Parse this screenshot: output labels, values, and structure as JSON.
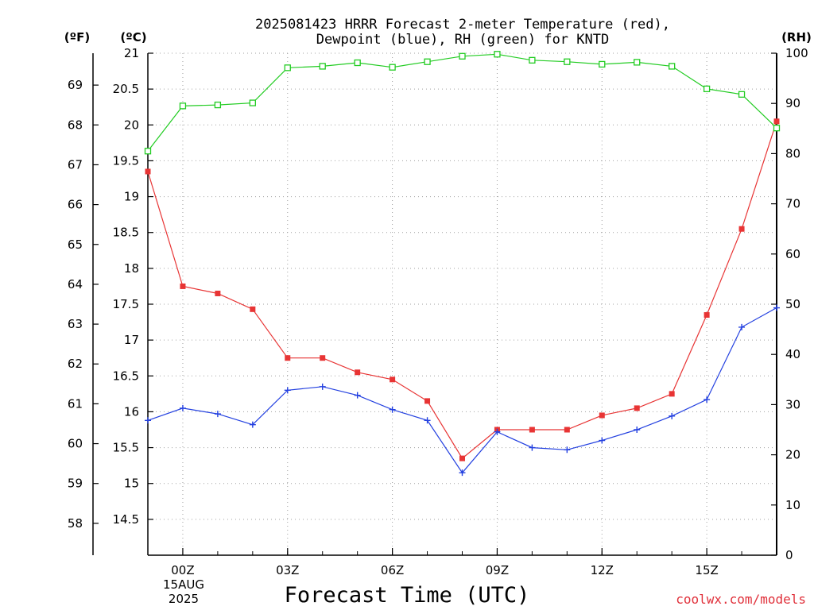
{
  "chart_data": {
    "type": "line",
    "title_lines": [
      "2025081423 HRRR Forecast 2-meter Temperature (red),",
      "Dewpoint (blue), RH (green) for KNTD"
    ],
    "xlabel": "Forecast Time (UTC)",
    "date_label": [
      "15AUG",
      "2025"
    ],
    "credit": "coolwx.com/models",
    "x_range": [
      -1,
      17
    ],
    "x_ticks": [
      {
        "x": 0,
        "label": "00Z"
      },
      {
        "x": 3,
        "label": "03Z"
      },
      {
        "x": 6,
        "label": "06Z"
      },
      {
        "x": 9,
        "label": "09Z"
      },
      {
        "x": 12,
        "label": "12Z"
      },
      {
        "x": 15,
        "label": "15Z"
      }
    ],
    "axes": {
      "fahrenheit": {
        "unit_label": "(ºF)",
        "range": [
          57.2,
          69.8
        ],
        "ticks": [
          58,
          59,
          60,
          61,
          62,
          63,
          64,
          65,
          66,
          67,
          68,
          69
        ]
      },
      "celsius": {
        "unit_label": "(ºC)",
        "range": [
          14.0,
          21.0
        ],
        "ticks": [
          14.5,
          15,
          15.5,
          16,
          16.5,
          17,
          17.5,
          18,
          18.5,
          19,
          19.5,
          20,
          20.5,
          21
        ]
      },
      "rh": {
        "unit_label": "(RH)",
        "range": [
          0,
          100
        ],
        "ticks": [
          0,
          10,
          20,
          30,
          40,
          50,
          60,
          70,
          80,
          90,
          100
        ]
      }
    },
    "grid": true,
    "series": [
      {
        "name": "Temperature",
        "color": "#e83434",
        "axis": "celsius",
        "marker": "filled-square",
        "x": [
          -1,
          0,
          1,
          2,
          3,
          4,
          5,
          6,
          7,
          8,
          9,
          10,
          11,
          12,
          13,
          14,
          15,
          16,
          17
        ],
        "values": [
          19.35,
          17.75,
          17.65,
          17.43,
          16.75,
          16.75,
          16.55,
          16.45,
          16.15,
          15.35,
          15.75,
          15.75,
          15.75,
          15.95,
          16.05,
          16.25,
          17.35,
          18.55,
          20.05
        ]
      },
      {
        "name": "Dewpoint",
        "color": "#2340e0",
        "axis": "celsius",
        "marker": "plus",
        "x": [
          -1,
          0,
          1,
          2,
          3,
          4,
          5,
          6,
          7,
          8,
          9,
          10,
          11,
          12,
          13,
          14,
          15,
          16,
          17
        ],
        "values": [
          15.88,
          16.05,
          15.97,
          15.82,
          16.3,
          16.35,
          16.23,
          16.03,
          15.88,
          15.15,
          15.72,
          15.5,
          15.47,
          15.6,
          15.75,
          15.94,
          16.17,
          17.18,
          17.45
        ]
      },
      {
        "name": "RH",
        "color": "#22cc22",
        "axis": "rh",
        "marker": "open-square",
        "x": [
          -1,
          0,
          1,
          2,
          3,
          4,
          5,
          6,
          7,
          8,
          9,
          10,
          11,
          12,
          13,
          14,
          15,
          16,
          17
        ],
        "values": [
          80.5,
          89.5,
          89.7,
          90.1,
          97.1,
          97.4,
          98.1,
          97.2,
          98.3,
          99.4,
          99.8,
          98.6,
          98.3,
          97.8,
          98.2,
          97.4,
          92.9,
          91.8,
          85.1
        ]
      }
    ]
  }
}
